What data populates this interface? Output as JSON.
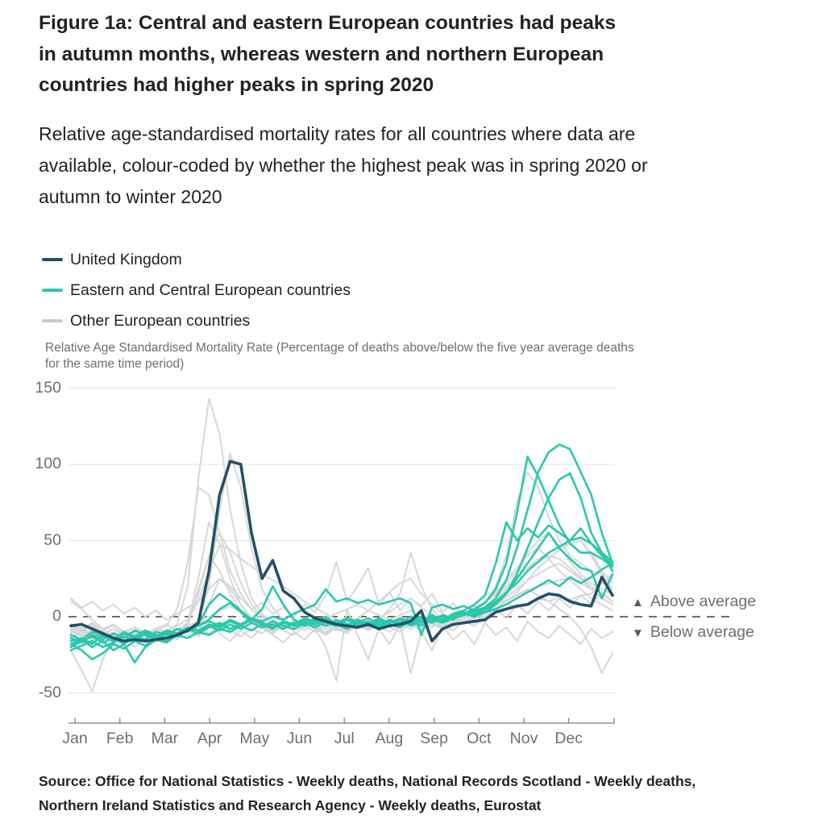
{
  "header": {
    "title": "Figure 1a: Central and eastern European countries had peaks in autumn months, whereas western and northern European countries had higher peaks in spring 2020",
    "subtitle": "Relative age-standardised mortality rates for all countries where data are available, colour-coded by whether the highest peak was in spring 2020 or autumn to winter 2020"
  },
  "legend": {
    "items": [
      {
        "label": "United Kingdom",
        "color": "#24506b"
      },
      {
        "label": "Eastern and Central European countries",
        "color": "#2bc8ab"
      },
      {
        "label": "Other European countries",
        "color": "#c9c9c9"
      }
    ]
  },
  "annotations": {
    "above": {
      "arrow": "▲",
      "label": "Above average"
    },
    "below": {
      "arrow": "▼",
      "label": "Below average"
    }
  },
  "footer": {
    "source": "Source: Office for National Statistics - Weekly deaths, National Records Scotland - Weekly deaths, Northern Ireland Statistics and Research Agency - Weekly deaths, Eurostat"
  },
  "chart_data": {
    "type": "line",
    "y_axis_title": "Relative Age Standardised Mortality Rate (Percentage of deaths above/below the five year average deaths for the same time period)",
    "x_tick_labels": [
      "Jan",
      "Feb",
      "Mar",
      "Apr",
      "May",
      "Jun",
      "Jul",
      "Aug",
      "Sep",
      "Oct",
      "Nov",
      "Dec"
    ],
    "y_ticks": [
      150,
      100,
      50,
      0,
      -50
    ],
    "ylim": [
      -70,
      160
    ],
    "x_unit": "week of 2020",
    "weeks": 52,
    "grid": true,
    "legend_position": "top-left",
    "zero_line": {
      "style": "dashed",
      "color": "#6e6e6e",
      "meaning": "five year average"
    },
    "group_colors": {
      "uk": "#24506b",
      "eastern_central": "#2bc8ab",
      "other": "#d7d7d7"
    },
    "series": [
      {
        "name": "other-1",
        "group": "other",
        "values": [
          10,
          5,
          -2,
          -8,
          -5,
          -10,
          -7,
          -12,
          -8,
          -10,
          -5,
          20,
          90,
          143,
          120,
          70,
          35,
          12,
          2,
          -5,
          -8,
          -4,
          -9,
          -5,
          -8,
          -3,
          -6,
          -1,
          4,
          10,
          16,
          22,
          25,
          15,
          8,
          2,
          -2,
          0,
          4,
          10,
          16,
          24,
          32,
          40,
          45,
          38,
          30,
          24,
          18,
          12,
          8,
          4
        ]
      },
      {
        "name": "other-2",
        "group": "other",
        "values": [
          -8,
          -12,
          -9,
          -14,
          -10,
          -13,
          -9,
          -11,
          -14,
          -10,
          -12,
          -8,
          -4,
          20,
          70,
          107,
          85,
          45,
          18,
          6,
          -2,
          -6,
          -3,
          -8,
          -4,
          -7,
          -2,
          -5,
          -8,
          -3,
          -6,
          -2,
          -4,
          0,
          -3,
          -6,
          -1,
          2,
          5,
          9,
          15,
          22,
          30,
          42,
          50,
          55,
          46,
          36,
          28,
          22,
          18,
          15
        ]
      },
      {
        "name": "other-3",
        "group": "other",
        "values": [
          -6,
          -9,
          -5,
          -11,
          -8,
          -12,
          -9,
          -13,
          -10,
          -6,
          5,
          35,
          85,
          80,
          55,
          30,
          15,
          5,
          -2,
          -7,
          -4,
          -9,
          -6,
          -10,
          -5,
          -8,
          -3,
          -7,
          -4,
          -1,
          3,
          8,
          12,
          6,
          2,
          -3,
          0,
          2,
          6,
          10,
          14,
          20,
          26,
          32,
          36,
          40,
          38,
          32,
          26,
          20,
          15,
          10
        ]
      },
      {
        "name": "other-4",
        "group": "other",
        "values": [
          -10,
          -7,
          -12,
          -9,
          -13,
          -10,
          -14,
          -11,
          -8,
          -12,
          -9,
          -4,
          25,
          62,
          48,
          25,
          8,
          -2,
          -6,
          -10,
          -5,
          -8,
          -4,
          -7,
          -11,
          -6,
          -9,
          -5,
          -8,
          -4,
          -6,
          -2,
          -5,
          -9,
          -4,
          -7,
          -3,
          -1,
          3,
          7,
          12,
          18,
          25,
          32,
          38,
          42,
          46,
          48,
          50,
          42,
          30,
          22
        ]
      },
      {
        "name": "other-5",
        "group": "other",
        "values": [
          -9,
          -13,
          -10,
          -15,
          -11,
          -14,
          -10,
          -13,
          -9,
          -12,
          -8,
          -5,
          15,
          40,
          55,
          42,
          22,
          8,
          0,
          -4,
          -8,
          -3,
          -7,
          -2,
          -6,
          -9,
          -4,
          -8,
          -3,
          -6,
          -10,
          -5,
          -8,
          -4,
          -7,
          -2,
          -5,
          -1,
          -4,
          2,
          6,
          10,
          14,
          18,
          14,
          10,
          5,
          0,
          -8,
          -20,
          -37,
          -24
        ]
      },
      {
        "name": "other-6",
        "group": "other",
        "values": [
          -7,
          -10,
          -6,
          -12,
          -8,
          -11,
          -7,
          -10,
          -13,
          -9,
          -6,
          -2,
          10,
          30,
          47,
          44,
          38,
          33,
          28,
          24,
          20,
          15,
          10,
          6,
          2,
          -2,
          -5,
          -1,
          -4,
          -8,
          -3,
          -6,
          -2,
          -5,
          -1,
          -4,
          0,
          -3,
          1,
          4,
          8,
          11,
          14,
          17,
          20,
          22,
          24,
          25,
          22,
          18,
          22,
          25
        ]
      },
      {
        "name": "other-7",
        "group": "other",
        "values": [
          -11,
          -8,
          -13,
          -9,
          -12,
          -16,
          -11,
          -14,
          -10,
          -13,
          -9,
          -6,
          18,
          40,
          30,
          15,
          4,
          -3,
          -7,
          -11,
          -6,
          -9,
          -5,
          -8,
          -12,
          -7,
          -10,
          -6,
          -9,
          -5,
          -7,
          -3,
          -6,
          -2,
          -5,
          -8,
          -3,
          -1,
          4,
          9,
          20,
          40,
          75,
          95,
          85,
          65,
          50,
          40,
          35,
          30,
          28,
          25
        ]
      },
      {
        "name": "other-8",
        "group": "other",
        "values": [
          -13,
          -10,
          -15,
          -11,
          -16,
          -12,
          -15,
          -11,
          -14,
          -10,
          -12,
          -7,
          -10,
          8,
          25,
          18,
          8,
          -1,
          -5,
          -9,
          -4,
          -8,
          -3,
          -6,
          -10,
          -5,
          -8,
          -4,
          -7,
          -2,
          5,
          15,
          42,
          20,
          5,
          -2,
          -6,
          -3,
          0,
          4,
          8,
          13,
          18,
          24,
          28,
          32,
          35,
          30,
          25,
          18,
          12,
          8
        ]
      },
      {
        "name": "other-9",
        "group": "other",
        "values": [
          -22,
          -35,
          -49,
          -28,
          -14,
          -18,
          -12,
          -16,
          -11,
          -14,
          -9,
          -12,
          -8,
          -11,
          -6,
          -9,
          -13,
          -8,
          -11,
          -5,
          -9,
          -12,
          -6,
          -10,
          -4,
          -8,
          -11,
          -5,
          -9,
          -3,
          -7,
          -10,
          -4,
          -8,
          -2,
          -6,
          -9,
          -3,
          -6,
          0,
          5,
          10,
          16,
          24,
          32,
          38,
          44,
          48,
          50,
          40,
          28,
          18
        ]
      },
      {
        "name": "other-10",
        "group": "other",
        "values": [
          -5,
          -8,
          -4,
          -9,
          -6,
          -10,
          -7,
          -11,
          -8,
          -5,
          -9,
          -6,
          -3,
          0,
          4,
          7,
          3,
          -1,
          -5,
          -2,
          -6,
          -3,
          -7,
          -4,
          -1,
          2,
          5,
          8,
          4,
          1,
          -2,
          1,
          4,
          0,
          -3,
          -6,
          -2,
          -5,
          -1,
          2,
          5,
          8,
          6,
          9,
          12,
          10,
          13,
          11,
          14,
          15,
          22,
          28
        ]
      },
      {
        "name": "other-11",
        "group": "other",
        "values": [
          -15,
          -9,
          -16,
          -10,
          -18,
          -12,
          -20,
          -13,
          -17,
          -11,
          -15,
          -8,
          -13,
          -6,
          -11,
          -16,
          -9,
          -14,
          -7,
          -12,
          -17,
          -10,
          -15,
          -8,
          -20,
          -42,
          5,
          -12,
          -28,
          -8,
          -18,
          -5,
          -37,
          -10,
          -22,
          -6,
          -15,
          -9,
          -18,
          -4,
          -12,
          -7,
          -16,
          -3,
          -10,
          -14,
          -6,
          -12,
          -18,
          -8,
          -14,
          -10
        ]
      },
      {
        "name": "other-12",
        "group": "other",
        "values": [
          12,
          6,
          10,
          4,
          8,
          2,
          6,
          0,
          4,
          -2,
          2,
          6,
          10,
          18,
          25,
          20,
          12,
          5,
          9,
          2,
          6,
          0,
          8,
          3,
          14,
          36,
          10,
          20,
          32,
          8,
          16,
          4,
          12,
          7,
          15,
          3,
          9,
          1,
          7,
          -3,
          5,
          -1,
          8,
          2,
          10,
          4,
          12,
          6,
          14,
          8,
          16,
          10
        ]
      },
      {
        "name": "eastern-central-1",
        "group": "eastern_central",
        "values": [
          -16,
          -14,
          -18,
          -12,
          -15,
          -10,
          -13,
          -9,
          -12,
          -14,
          -11,
          -8,
          -6,
          -2,
          5,
          9,
          3,
          -4,
          -7,
          -5,
          -8,
          -4,
          -6,
          -3,
          -6,
          -2,
          -5,
          -7,
          -4,
          -6,
          -3,
          -5,
          -2,
          -4,
          -1,
          -3,
          0,
          2,
          5,
          9,
          18,
          35,
          68,
          105,
          92,
          76,
          60,
          48,
          42,
          42,
          38,
          33
        ]
      },
      {
        "name": "eastern-central-2",
        "group": "eastern_central",
        "values": [
          -22,
          -19,
          -16,
          -20,
          -17,
          -13,
          -16,
          -11,
          -14,
          -10,
          -13,
          -9,
          -5,
          8,
          15,
          10,
          4,
          -2,
          -5,
          -8,
          -3,
          -6,
          -2,
          -5,
          -1,
          -4,
          -6,
          -2,
          -5,
          -1,
          -4,
          -2,
          -6,
          -3,
          0,
          -2,
          1,
          3,
          2,
          6,
          12,
          24,
          45,
          70,
          95,
          108,
          113,
          110,
          95,
          80,
          55,
          35
        ]
      },
      {
        "name": "eastern-central-3",
        "group": "eastern_central",
        "values": [
          -18,
          -15,
          -20,
          -16,
          -22,
          -18,
          -30,
          -20,
          -15,
          -17,
          -12,
          -14,
          -10,
          -6,
          -9,
          -5,
          -8,
          -4,
          -7,
          -3,
          -6,
          -8,
          -4,
          -7,
          -3,
          -5,
          -8,
          -4,
          -6,
          -3,
          -5,
          -7,
          -3,
          -6,
          -2,
          -4,
          -1,
          1,
          4,
          3,
          8,
          15,
          28,
          45,
          62,
          78,
          90,
          94,
          78,
          55,
          42,
          30
        ]
      },
      {
        "name": "eastern-central-4",
        "group": "eastern_central",
        "values": [
          -14,
          -17,
          -12,
          -15,
          -11,
          -14,
          -9,
          -12,
          -15,
          -11,
          -13,
          -8,
          -11,
          -7,
          -4,
          -8,
          -5,
          -2,
          5,
          20,
          8,
          -2,
          -5,
          -1,
          -4,
          -6,
          -2,
          -4,
          -1,
          -5,
          -2,
          -4,
          0,
          -3,
          1,
          -2,
          2,
          4,
          8,
          14,
          35,
          62,
          50,
          58,
          52,
          60,
          55,
          50,
          58,
          48,
          40,
          34
        ]
      },
      {
        "name": "eastern-central-5",
        "group": "eastern_central",
        "values": [
          -20,
          -16,
          -13,
          -17,
          -14,
          -18,
          -13,
          -15,
          -10,
          -12,
          -8,
          -10,
          -6,
          -3,
          -6,
          -2,
          -5,
          -1,
          -3,
          0,
          -2,
          2,
          5,
          8,
          18,
          10,
          12,
          9,
          11,
          8,
          10,
          12,
          9,
          -12,
          6,
          8,
          5,
          7,
          4,
          6,
          10,
          16,
          22,
          30,
          36,
          42,
          46,
          50,
          52,
          48,
          42,
          36
        ]
      },
      {
        "name": "eastern-central-6",
        "group": "eastern_central",
        "values": [
          -18,
          -22,
          -28,
          -24,
          -18,
          -21,
          -16,
          -19,
          -14,
          -16,
          -12,
          -14,
          -10,
          -12,
          -8,
          -10,
          -6,
          -9,
          -5,
          -7,
          -4,
          -6,
          -3,
          -5,
          -2,
          -4,
          -1,
          -3,
          -5,
          -2,
          -4,
          -1,
          -3,
          0,
          -2,
          1,
          -1,
          2,
          0,
          3,
          5,
          8,
          12,
          16,
          20,
          24,
          20,
          26,
          22,
          26,
          31,
          35
        ]
      },
      {
        "name": "eastern-central-7",
        "group": "eastern_central",
        "values": [
          -12,
          -15,
          -10,
          -13,
          -16,
          -11,
          -14,
          -10,
          -13,
          -9,
          -11,
          -7,
          -9,
          -5,
          -7,
          -3,
          -6,
          -2,
          -4,
          -7,
          -3,
          -5,
          -1,
          -3,
          0,
          -5,
          -2,
          -6,
          -3,
          -7,
          -4,
          -2,
          -5,
          -1,
          -4,
          0,
          -2,
          3,
          1,
          5,
          9,
          15,
          25,
          35,
          45,
          55,
          45,
          38,
          32,
          30,
          12,
          28
        ]
      },
      {
        "name": "united-kingdom",
        "group": "uk",
        "values": [
          -6,
          -5,
          -8,
          -11,
          -14,
          -16,
          -15,
          -16,
          -15,
          -14,
          -12,
          -9,
          -4,
          30,
          80,
          102,
          100,
          55,
          25,
          37,
          17,
          12,
          3,
          -1,
          -3,
          -5,
          -6,
          -7,
          -5,
          -8,
          -6,
          -5,
          -3,
          4,
          -16,
          -8,
          -5,
          -4,
          -3,
          -2,
          3,
          5,
          7,
          8,
          12,
          15,
          14,
          10,
          8,
          7,
          26,
          14
        ]
      }
    ]
  }
}
